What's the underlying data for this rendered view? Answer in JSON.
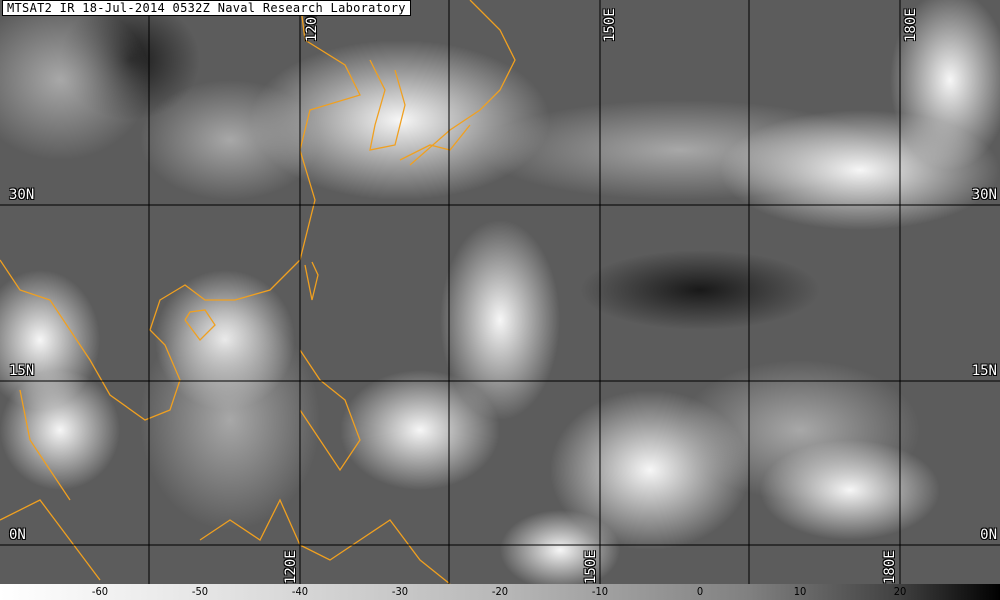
{
  "title": "MTSAT2 IR 18-Jul-2014 0532Z Naval Research Laboratory",
  "grid": {
    "longitudes_top": [
      "120E",
      "150E",
      "180E"
    ],
    "longitudes_bottom": [
      "120E",
      "150E",
      "180E"
    ],
    "latitudes": [
      "30N",
      "15N",
      "0N"
    ]
  },
  "colorbar": {
    "ticks": [
      "-60",
      "-50",
      "-40",
      "-30",
      "-20",
      "-10",
      "0",
      "10",
      "20"
    ],
    "range": [
      -70,
      30
    ],
    "gradient": "white-to-black"
  },
  "colors": {
    "coastline": "#f0a020",
    "grid": "#000000",
    "label": "#ffffff"
  }
}
